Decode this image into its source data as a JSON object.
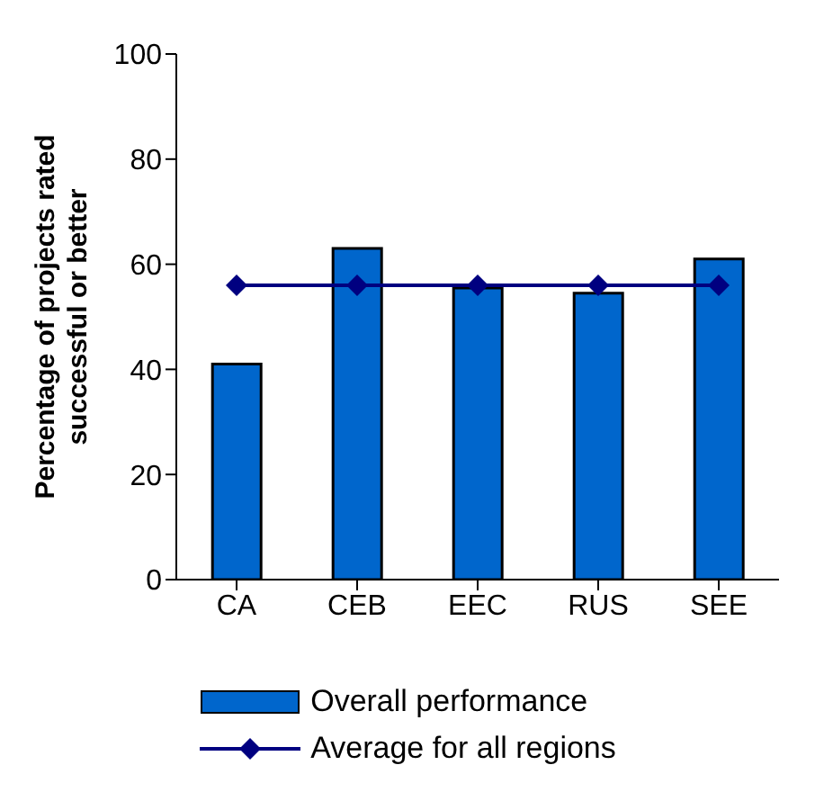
{
  "chart_data": {
    "type": "bar",
    "ylabel": "Percentage of projects rated successful or better",
    "categories": [
      "CA",
      "CEB",
      "EEC",
      "RUS",
      "SEE"
    ],
    "series": [
      {
        "name": "Overall performance",
        "color": "#0066cc",
        "values": [
          41,
          63,
          55.5,
          54.5,
          61
        ]
      },
      {
        "name": "Average for all regions",
        "type": "line",
        "color": "#000080",
        "values": [
          56,
          56,
          56,
          56,
          56
        ],
        "marker": "diamond"
      }
    ],
    "ylim": [
      0,
      100
    ],
    "yticks": [
      0,
      20,
      40,
      60,
      80,
      100
    ],
    "legend": "bottom"
  }
}
